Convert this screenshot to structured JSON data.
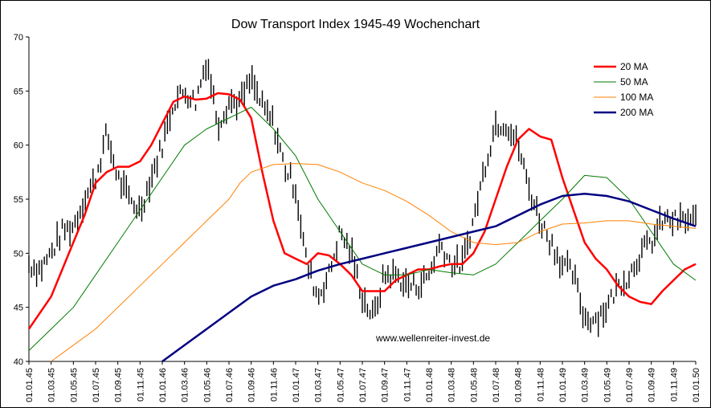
{
  "chart_data": {
    "type": "line",
    "title": "Dow Transport Index 1945-49 Wochenchart",
    "xlabel": "",
    "ylabel": "",
    "ylim": [
      40,
      70
    ],
    "yticks": [
      "40",
      "45",
      "50",
      "55",
      "60",
      "65",
      "70"
    ],
    "xticks": [
      "01.01.45",
      "01.03.45",
      "01.05.45",
      "01.07.45",
      "01.09.45",
      "01.11.45",
      "01.01.46",
      "01.03.46",
      "01.05.46",
      "01.07.46",
      "01.09.46",
      "01.11.46",
      "01.01.47",
      "01.03.47",
      "01.05.47",
      "01.07.47",
      "01.09.47",
      "01.11.47",
      "01.01.48",
      "01.03.48",
      "01.05.48",
      "01.07.48",
      "01.09.48",
      "01.11.48",
      "01.01.49",
      "01.03.49",
      "01.05.49",
      "01.07.49",
      "01.09.49",
      "01.11.49",
      "01.01.50"
    ],
    "annotation": "www.wellenreiter-invest.de",
    "grid": false,
    "legend": "top-right",
    "price_color": "#000000",
    "price_anchor_points": [
      [
        0,
        49
      ],
      [
        1,
        48.5
      ],
      [
        2,
        50
      ],
      [
        3,
        52
      ],
      [
        4,
        52.5
      ],
      [
        5,
        55
      ],
      [
        6,
        57
      ],
      [
        7,
        61
      ],
      [
        8,
        57
      ],
      [
        9,
        55
      ],
      [
        10,
        54
      ],
      [
        11,
        57
      ],
      [
        12,
        60
      ],
      [
        13,
        64
      ],
      [
        14,
        65
      ],
      [
        15,
        64
      ],
      [
        16,
        68
      ],
      [
        17,
        62
      ],
      [
        18,
        64
      ],
      [
        19,
        64
      ],
      [
        20,
        66
      ],
      [
        21,
        63.5
      ],
      [
        22,
        62
      ],
      [
        23,
        58
      ],
      [
        24,
        56
      ],
      [
        25,
        49
      ],
      [
        26,
        46
      ],
      [
        27,
        48
      ],
      [
        28,
        52
      ],
      [
        29,
        50
      ],
      [
        30,
        46
      ],
      [
        31,
        44
      ],
      [
        32,
        48
      ],
      [
        33,
        48
      ],
      [
        34,
        47
      ],
      [
        35,
        47
      ],
      [
        36,
        48
      ],
      [
        37,
        51
      ],
      [
        38,
        49
      ],
      [
        39,
        49
      ],
      [
        40,
        53
      ],
      [
        41,
        58
      ],
      [
        42,
        62
      ],
      [
        43,
        62
      ],
      [
        44,
        60
      ],
      [
        45,
        56
      ],
      [
        46,
        53
      ],
      [
        47,
        51
      ],
      [
        48,
        49
      ],
      [
        49,
        48
      ],
      [
        50,
        44
      ],
      [
        51,
        44
      ],
      [
        52,
        45
      ],
      [
        53,
        47
      ],
      [
        54,
        48
      ],
      [
        55,
        50
      ],
      [
        56,
        51
      ],
      [
        57,
        53
      ]
    ],
    "price_anchor_unit": "x in data index (0 = 01.01.45, 60 = 01.01.50)",
    "series": [
      {
        "name": "20 MA",
        "color": "#ff0000",
        "width": 2.5,
        "points": [
          [
            0,
            43
          ],
          [
            1,
            44.5
          ],
          [
            2,
            46
          ],
          [
            3,
            48.5
          ],
          [
            4,
            51
          ],
          [
            5,
            53.5
          ],
          [
            6,
            56.5
          ],
          [
            7,
            57.5
          ],
          [
            8,
            58
          ],
          [
            9,
            58
          ],
          [
            10,
            58.5
          ],
          [
            11,
            60
          ],
          [
            12,
            62
          ],
          [
            13,
            64
          ],
          [
            14,
            64.5
          ],
          [
            15,
            64.2
          ],
          [
            16,
            64.3
          ],
          [
            17,
            64.8
          ],
          [
            18,
            64.7
          ],
          [
            19,
            64.2
          ],
          [
            20,
            62.5
          ],
          [
            21,
            57.5
          ],
          [
            22,
            53
          ],
          [
            23,
            50
          ],
          [
            24,
            49.5
          ],
          [
            25,
            49
          ],
          [
            26,
            50
          ],
          [
            27,
            49.8
          ],
          [
            28,
            49
          ],
          [
            29,
            48
          ],
          [
            30,
            46.5
          ],
          [
            31,
            46.5
          ],
          [
            32,
            46.5
          ],
          [
            33,
            47.5
          ],
          [
            34,
            48
          ],
          [
            35,
            48.5
          ],
          [
            36,
            48.5
          ],
          [
            37,
            48.8
          ],
          [
            38,
            49
          ],
          [
            39,
            49
          ],
          [
            40,
            50
          ],
          [
            41,
            52
          ],
          [
            42,
            55
          ],
          [
            43,
            58
          ],
          [
            44,
            60.5
          ],
          [
            45,
            61.5
          ],
          [
            46,
            60.8
          ],
          [
            47,
            60.5
          ],
          [
            48,
            57
          ],
          [
            49,
            54
          ],
          [
            50,
            51
          ],
          [
            51,
            49.5
          ],
          [
            52,
            48.5
          ],
          [
            53,
            47
          ],
          [
            54,
            46
          ],
          [
            55,
            45.5
          ],
          [
            56,
            45.3
          ],
          [
            57,
            46.5
          ],
          [
            58,
            47.5
          ],
          [
            59,
            48.5
          ],
          [
            60,
            49
          ]
        ]
      },
      {
        "name": "50 MA",
        "color": "#007a00",
        "width": 1,
        "points": [
          [
            0,
            41
          ],
          [
            2,
            43
          ],
          [
            4,
            45
          ],
          [
            6,
            48
          ],
          [
            8,
            51
          ],
          [
            10,
            54
          ],
          [
            12,
            57
          ],
          [
            14,
            60
          ],
          [
            16,
            61.5
          ],
          [
            18,
            62.5
          ],
          [
            19,
            63
          ],
          [
            20,
            63.5
          ],
          [
            22,
            61.5
          ],
          [
            24,
            59
          ],
          [
            26,
            55
          ],
          [
            28,
            52
          ],
          [
            30,
            49
          ],
          [
            32,
            48
          ],
          [
            34,
            48
          ],
          [
            36,
            48.5
          ],
          [
            38,
            48.2
          ],
          [
            40,
            48
          ],
          [
            42,
            49
          ],
          [
            44,
            51
          ],
          [
            46,
            53
          ],
          [
            48,
            55
          ],
          [
            50,
            57.2
          ],
          [
            52,
            57
          ],
          [
            54,
            55
          ],
          [
            56,
            52
          ],
          [
            58,
            49
          ],
          [
            60,
            47.5
          ]
        ]
      },
      {
        "name": "100 MA",
        "color": "#ff8000",
        "width": 1,
        "points": [
          [
            2,
            40
          ],
          [
            4,
            41.5
          ],
          [
            6,
            43
          ],
          [
            8,
            45
          ],
          [
            10,
            47
          ],
          [
            12,
            49
          ],
          [
            14,
            51
          ],
          [
            16,
            53
          ],
          [
            18,
            55
          ],
          [
            19,
            56.5
          ],
          [
            20,
            57.5
          ],
          [
            22,
            58.2
          ],
          [
            24,
            58.3
          ],
          [
            26,
            58.2
          ],
          [
            28,
            57.5
          ],
          [
            30,
            56.5
          ],
          [
            32,
            55.8
          ],
          [
            34,
            54.8
          ],
          [
            36,
            53.5
          ],
          [
            38,
            52
          ],
          [
            40,
            51
          ],
          [
            42,
            50.8
          ],
          [
            44,
            51
          ],
          [
            46,
            52
          ],
          [
            48,
            52.7
          ],
          [
            50,
            52.8
          ],
          [
            52,
            53
          ],
          [
            54,
            53
          ],
          [
            56,
            52.7
          ],
          [
            58,
            52.5
          ],
          [
            60,
            52.3
          ]
        ]
      },
      {
        "name": "200 MA",
        "color": "#000080",
        "width": 2.5,
        "points": [
          [
            12,
            40
          ],
          [
            14,
            41.5
          ],
          [
            16,
            43
          ],
          [
            18,
            44.5
          ],
          [
            20,
            46
          ],
          [
            22,
            47
          ],
          [
            24,
            47.6
          ],
          [
            26,
            48.4
          ],
          [
            28,
            49
          ],
          [
            30,
            49.5
          ],
          [
            32,
            50
          ],
          [
            34,
            50.5
          ],
          [
            36,
            51
          ],
          [
            38,
            51.5
          ],
          [
            40,
            52
          ],
          [
            42,
            52.5
          ],
          [
            44,
            53.5
          ],
          [
            46,
            54.5
          ],
          [
            48,
            55.3
          ],
          [
            50,
            55.5
          ],
          [
            52,
            55.3
          ],
          [
            54,
            54.8
          ],
          [
            56,
            54
          ],
          [
            58,
            53.2
          ],
          [
            60,
            52.5
          ]
        ]
      }
    ]
  }
}
